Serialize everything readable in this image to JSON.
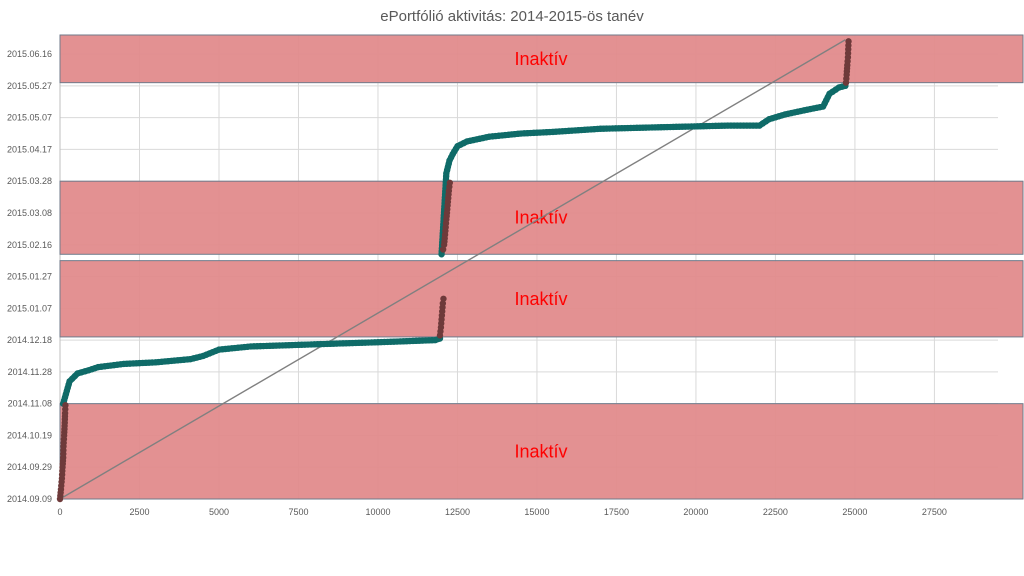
{
  "chart_data": {
    "type": "scatter",
    "title": "ePortfólió aktivitás: 2014-2015-ös tanév",
    "xlabel": "",
    "ylabel": "",
    "xlim": [
      0,
      29500
    ],
    "x_ticks": [
      0,
      2500,
      5000,
      7500,
      10000,
      12500,
      15000,
      17500,
      20000,
      22500,
      25000,
      27500
    ],
    "ylim": [
      "2014.09.09",
      "2015.06.28"
    ],
    "y_ticks": [
      "2014.09.09",
      "2014.09.29",
      "2014.10.19",
      "2014.11.08",
      "2014.11.28",
      "2014.12.18",
      "2015.01.07",
      "2015.01.27",
      "2015.02.16",
      "2015.03.08",
      "2015.03.28",
      "2015.04.17",
      "2015.05.07",
      "2015.05.27",
      "2015.06.16"
    ],
    "grid": true,
    "colors": {
      "active": "#0f6b68",
      "inactive": "#6e3a3a",
      "band_fill": "#e28b8c",
      "band_stroke": "#6f7a8a",
      "diagonal": "#808080",
      "band_label": "#ff0000"
    },
    "bands": [
      {
        "label": "Inaktív",
        "from": "2015.05.29",
        "to": "2015.06.28"
      },
      {
        "label": "Inaktív",
        "from": "2015.02.10",
        "to": "2015.03.28"
      },
      {
        "label": "Inaktív",
        "from": "2014.12.20",
        "to": "2015.02.06"
      },
      {
        "label": "Inaktív",
        "from": "2014.09.09",
        "to": "2014.11.08"
      }
    ],
    "diagonal": {
      "x": [
        0,
        24700
      ],
      "y": [
        "2014.09.09",
        "2015.06.25"
      ]
    },
    "series": [
      {
        "status": "active",
        "x": [
          100,
          300,
          550,
          900,
          1200,
          2000,
          3000,
          4100,
          4500,
          5000,
          6000,
          7500,
          9000,
          10500,
          11800,
          11950
        ],
        "y": [
          "2014.11.08",
          "2014.11.22",
          "2014.11.27",
          "2014.11.29",
          "2014.12.01",
          "2014.12.03",
          "2014.12.04",
          "2014.12.06",
          "2014.12.08",
          "2014.12.12",
          "2014.12.14",
          "2014.12.15",
          "2014.12.16",
          "2014.12.17",
          "2014.12.18",
          "2014.12.19"
        ]
      },
      {
        "status": "active",
        "x": [
          12000,
          12150,
          12250,
          12350,
          12500,
          12800,
          13500,
          14500,
          15500,
          17000,
          19000,
          21000,
          22000,
          22300,
          22800,
          23500,
          24000,
          24200,
          24500,
          24700
        ],
        "y": [
          "2015.02.10",
          "2015.04.02",
          "2015.04.10",
          "2015.04.14",
          "2015.04.19",
          "2015.04.22",
          "2015.04.25",
          "2015.04.27",
          "2015.04.28",
          "2015.04.30",
          "2015.05.01",
          "2015.05.02",
          "2015.05.02",
          "2015.05.06",
          "2015.05.09",
          "2015.05.12",
          "2015.05.14",
          "2015.05.22",
          "2015.05.26",
          "2015.05.27"
        ]
      },
      {
        "status": "inactive",
        "x": [
          0,
          30,
          60,
          80,
          100,
          110,
          130,
          150,
          160,
          170
        ],
        "y": [
          "2014.09.09",
          "2014.09.15",
          "2014.09.22",
          "2014.09.29",
          "2014.10.05",
          "2014.10.12",
          "2014.10.19",
          "2014.10.27",
          "2014.11.02",
          "2014.11.07"
        ]
      },
      {
        "status": "inactive",
        "x": [
          11950,
          11980,
          12000,
          12020,
          12040,
          12060
        ],
        "y": [
          "2014.12.21",
          "2014.12.26",
          "2014.12.31",
          "2015.01.05",
          "2015.01.10",
          "2015.01.13"
        ]
      },
      {
        "status": "inactive",
        "x": [
          12050,
          12080,
          12100,
          12130,
          12150,
          12170,
          12200,
          12230,
          12260
        ],
        "y": [
          "2015.02.13",
          "2015.02.16",
          "2015.02.20",
          "2015.02.27",
          "2015.03.04",
          "2015.03.08",
          "2015.03.15",
          "2015.03.22",
          "2015.03.27"
        ]
      },
      {
        "status": "inactive",
        "x": [
          24720,
          24740,
          24760,
          24780,
          24790,
          24800
        ],
        "y": [
          "2015.05.29",
          "2015.06.03",
          "2015.06.09",
          "2015.06.14",
          "2015.06.19",
          "2015.06.24"
        ]
      }
    ]
  }
}
